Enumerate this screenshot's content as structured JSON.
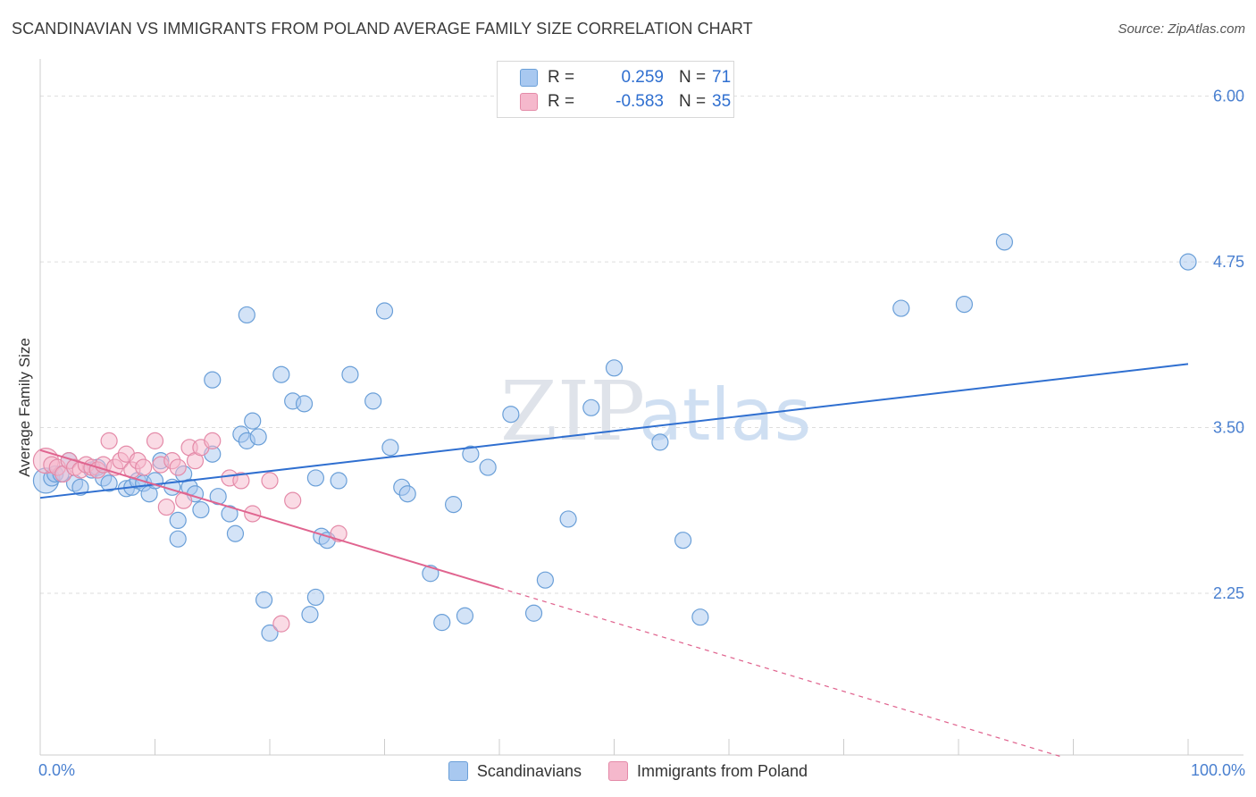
{
  "header": {
    "title": "SCANDINAVIAN VS IMMIGRANTS FROM POLAND AVERAGE FAMILY SIZE CORRELATION CHART",
    "source": "Source: ZipAtlas.com"
  },
  "watermark": {
    "part1": "ZIP",
    "part2": "atlas"
  },
  "stats": {
    "rows": [
      {
        "r_label": "R =",
        "r_value": "0.259",
        "n_label": "N =",
        "n_value": "71",
        "color": "#a8c8f0"
      },
      {
        "r_label": "R =",
        "r_value": "-0.583",
        "n_label": "N =",
        "n_value": "35",
        "color": "#f5b8cc"
      }
    ]
  },
  "colors": {
    "blue_fill": "#a8c8f0",
    "blue_stroke": "#6a9fd8",
    "blue_line": "#2f6fd0",
    "pink_fill": "#f5b8cc",
    "pink_stroke": "#e48aa8",
    "pink_line": "#e0648f",
    "tick_label": "#4a80d0",
    "grid": "#dddddd"
  },
  "chart_data": {
    "type": "scatter",
    "title": "SCANDINAVIAN VS IMMIGRANTS FROM POLAND AVERAGE FAMILY SIZE CORRELATION CHART",
    "xlabel": "",
    "ylabel": "Average Family Size",
    "x_tick_labels": {
      "min": "0.0%",
      "max": "100.0%"
    },
    "y_ticks": [
      6.0,
      4.75,
      3.5,
      2.25
    ],
    "y_tick_labels": [
      "6.00",
      "4.75",
      "3.50",
      "2.25"
    ],
    "xlim": [
      0,
      100
    ],
    "ylim": [
      1.03,
      6.2
    ],
    "legend_position": "bottom-center",
    "series": [
      {
        "name": "Scandinavians",
        "x": [
          0.5,
          1.0,
          1.3,
          1.8,
          2.5,
          3.0,
          3.5,
          4.5,
          5.0,
          5.5,
          6.0,
          7.5,
          8.0,
          8.5,
          9.0,
          9.5,
          10.0,
          10.5,
          11.5,
          12.0,
          12.5,
          13.0,
          13.5,
          14.0,
          15.0,
          15.5,
          16.5,
          17.0,
          17.5,
          18.0,
          18.5,
          19.0,
          19.5,
          20.0,
          21.0,
          22.0,
          23.0,
          23.5,
          24.0,
          24.5,
          25.0,
          26.0,
          27.0,
          29.0,
          30.5,
          31.5,
          32.0,
          34.0,
          35.0,
          36.0,
          37.5,
          39.0,
          41.0,
          43.0,
          44.0,
          46.0,
          48.0,
          50.0,
          54.0,
          56.0,
          57.5,
          75.0,
          80.5,
          84.0,
          100.0,
          30.0,
          37.0,
          24.0,
          18.0,
          12.0,
          15.0
        ],
        "y": [
          3.1,
          3.12,
          3.15,
          3.15,
          3.25,
          3.08,
          3.05,
          3.18,
          3.2,
          3.12,
          3.08,
          3.04,
          3.05,
          3.1,
          3.08,
          3.0,
          3.1,
          3.25,
          3.05,
          2.8,
          3.15,
          3.05,
          3.0,
          2.88,
          3.3,
          2.98,
          2.85,
          2.7,
          3.45,
          3.4,
          3.55,
          3.43,
          2.2,
          1.95,
          3.9,
          3.7,
          3.68,
          2.09,
          3.12,
          2.68,
          2.65,
          3.1,
          3.9,
          3.7,
          3.35,
          3.05,
          3.0,
          2.4,
          2.03,
          2.92,
          3.3,
          3.2,
          3.6,
          2.1,
          2.35,
          2.81,
          3.65,
          3.95,
          3.39,
          2.65,
          2.07,
          4.4,
          4.43,
          4.9,
          4.75,
          4.38,
          2.08,
          2.22,
          4.35,
          2.66,
          3.86
        ],
        "sizes": [
          14,
          9,
          9,
          9,
          9,
          9,
          9,
          9,
          9,
          9,
          9,
          9,
          9,
          9,
          9,
          9,
          9,
          9,
          9,
          9,
          9,
          9,
          9,
          9,
          9,
          9,
          9,
          9,
          9,
          9,
          9,
          9,
          9,
          9,
          9,
          9,
          9,
          9,
          9,
          9,
          9,
          9,
          9,
          9,
          9,
          9,
          9,
          9,
          9,
          9,
          9,
          9,
          9,
          9,
          9,
          9,
          9,
          9,
          9,
          9,
          9,
          9,
          9,
          9,
          9,
          9,
          9,
          9,
          9,
          9,
          9
        ]
      },
      {
        "name": "Immigrants from Poland",
        "x": [
          0.5,
          1.0,
          1.5,
          2.0,
          2.5,
          3.0,
          3.5,
          4.0,
          4.5,
          5.0,
          5.5,
          6.0,
          6.5,
          7.0,
          7.5,
          8.0,
          8.5,
          9.0,
          10.0,
          10.5,
          11.0,
          11.5,
          12.0,
          12.5,
          13.0,
          13.5,
          14.0,
          15.0,
          16.5,
          17.5,
          18.5,
          20.0,
          21.0,
          22.0,
          26.0
        ],
        "y": [
          3.25,
          3.22,
          3.2,
          3.15,
          3.25,
          3.2,
          3.18,
          3.22,
          3.2,
          3.18,
          3.22,
          3.4,
          3.2,
          3.25,
          3.3,
          3.18,
          3.25,
          3.2,
          3.4,
          3.22,
          2.9,
          3.25,
          3.2,
          2.95,
          3.35,
          3.25,
          3.35,
          3.4,
          3.12,
          3.1,
          2.85,
          3.1,
          2.02,
          2.95,
          2.7
        ],
        "sizes": [
          14,
          9,
          9,
          9,
          9,
          9,
          9,
          9,
          9,
          9,
          9,
          9,
          9,
          9,
          9,
          9,
          9,
          9,
          9,
          9,
          9,
          9,
          9,
          9,
          9,
          9,
          9,
          9,
          9,
          9,
          9,
          9,
          9,
          9,
          9
        ]
      }
    ],
    "trend_lines": [
      {
        "series": "Scandinavians",
        "x0": 0,
        "y0": 2.97,
        "x1": 100,
        "y1": 3.98,
        "dashed_to": null
      },
      {
        "series": "Immigrants from Poland",
        "x0": 0,
        "y0": 3.33,
        "x1": 40,
        "y1": 2.29,
        "dashed_to": 89
      }
    ]
  }
}
